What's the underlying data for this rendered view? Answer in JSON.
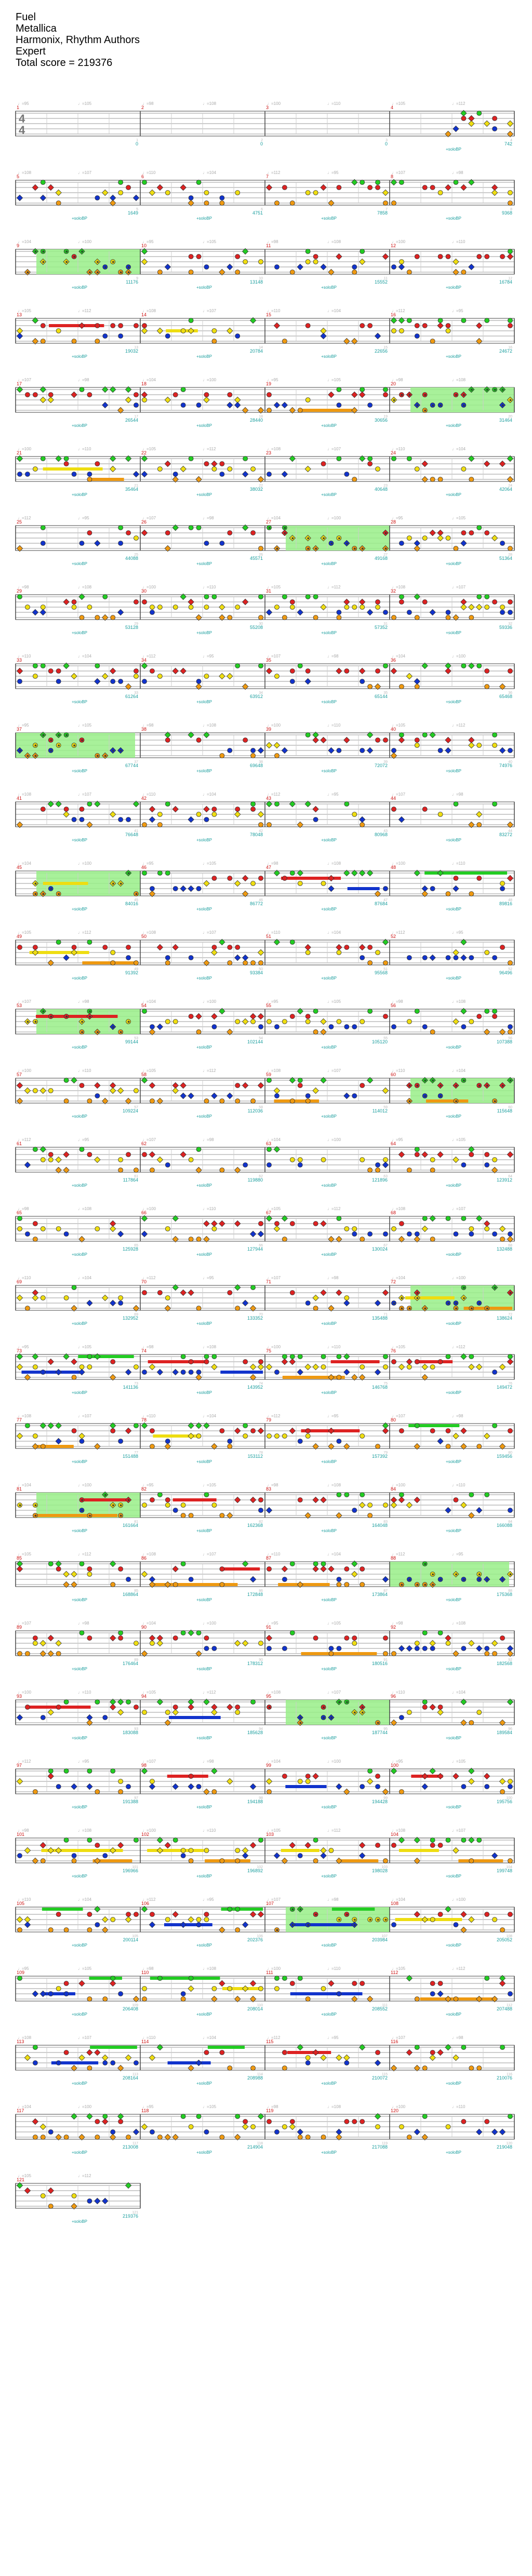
{
  "song": {
    "title": "Fuel",
    "artist": "Metallica",
    "charter": "Harmonix, Rhythm Authors",
    "difficulty": "Expert",
    "total_score_text": "Total score = 219376"
  },
  "time_signature": {
    "top": "4",
    "bottom": "4"
  },
  "tempo_markers": [
    "♩=95",
    "♩=98",
    "♩=100",
    "♩=105",
    "♩=108",
    "♩=110",
    "♩=112",
    "♩=107",
    "♩=104"
  ],
  "multiplier_text": "+solo\\nBP",
  "colors": {
    "green": "#22cc22",
    "red": "#dd2222",
    "yellow": "#eedd11",
    "blue": "#1133cc",
    "orange": "#ee9911",
    "starpower_fill": "#99ee88",
    "score_text": "#1a9e9e",
    "measure_number": "#cc1111",
    "staff_line": "#999999"
  },
  "measures": [
    {
      "n": "1",
      "score": "0"
    },
    {
      "n": "2",
      "score": "0"
    },
    {
      "n": "3",
      "score": "0"
    },
    {
      "n": "4",
      "score": "742"
    },
    {
      "n": "5",
      "score": "1649"
    },
    {
      "n": "6",
      "score": "4751"
    },
    {
      "n": "7",
      "score": "7858"
    },
    {
      "n": "8",
      "score": "9368"
    },
    {
      "n": "9",
      "score": "11176"
    },
    {
      "n": "10",
      "score": "13148"
    },
    {
      "n": "11",
      "score": "15552"
    },
    {
      "n": "12",
      "score": "16784"
    },
    {
      "n": "13",
      "score": "19032"
    },
    {
      "n": "14",
      "score": "20784"
    },
    {
      "n": "15",
      "score": "22656"
    },
    {
      "n": "16",
      "score": "24672"
    },
    {
      "n": "17",
      "score": "26544"
    },
    {
      "n": "18",
      "score": "28440"
    },
    {
      "n": "19",
      "score": "30656"
    },
    {
      "n": "20",
      "score": "31464"
    },
    {
      "n": "21",
      "score": "35464"
    },
    {
      "n": "22",
      "score": "38032"
    },
    {
      "n": "23",
      "score": "40648"
    },
    {
      "n": "24",
      "score": "42064"
    },
    {
      "n": "25",
      "score": "44088"
    },
    {
      "n": "26",
      "score": "45571"
    },
    {
      "n": "27",
      "score": "49168"
    },
    {
      "n": "28",
      "score": "51364"
    },
    {
      "n": "29",
      "score": "53128"
    },
    {
      "n": "30",
      "score": "55208"
    },
    {
      "n": "31",
      "score": "57352"
    },
    {
      "n": "32",
      "score": "59336"
    },
    {
      "n": "33",
      "score": "61264"
    },
    {
      "n": "34",
      "score": "63912"
    },
    {
      "n": "35",
      "score": "65144"
    },
    {
      "n": "36",
      "score": "65468"
    },
    {
      "n": "37",
      "score": "67744"
    },
    {
      "n": "38",
      "score": "69648"
    },
    {
      "n": "39",
      "score": "72072"
    },
    {
      "n": "40",
      "score": "74976"
    },
    {
      "n": "41",
      "score": "76648"
    },
    {
      "n": "42",
      "score": "78048"
    },
    {
      "n": "43",
      "score": "80968"
    },
    {
      "n": "44",
      "score": "83272"
    },
    {
      "n": "45",
      "score": "84016"
    },
    {
      "n": "46",
      "score": "86772"
    },
    {
      "n": "47",
      "score": "87684"
    },
    {
      "n": "48",
      "score": "89816"
    },
    {
      "n": "49",
      "score": "91392"
    },
    {
      "n": "50",
      "score": "93384"
    },
    {
      "n": "51",
      "score": "95568"
    },
    {
      "n": "52",
      "score": "96496"
    },
    {
      "n": "53",
      "score": "99144"
    },
    {
      "n": "54",
      "score": "102144"
    },
    {
      "n": "55",
      "score": "105120"
    },
    {
      "n": "56",
      "score": "107388"
    },
    {
      "n": "57",
      "score": "109224"
    },
    {
      "n": "58",
      "score": "112036"
    },
    {
      "n": "59",
      "score": "114012"
    },
    {
      "n": "60",
      "score": "115648"
    },
    {
      "n": "61",
      "score": "117864"
    },
    {
      "n": "62",
      "score": "119880"
    },
    {
      "n": "63",
      "score": "121896"
    },
    {
      "n": "64",
      "score": "123912"
    },
    {
      "n": "65",
      "score": "125928"
    },
    {
      "n": "66",
      "score": "127944"
    },
    {
      "n": "67",
      "score": "130024"
    },
    {
      "n": "68",
      "score": "132488"
    },
    {
      "n": "69",
      "score": "132952"
    },
    {
      "n": "70",
      "score": "133352"
    },
    {
      "n": "71",
      "score": "135488"
    },
    {
      "n": "72",
      "score": "138624"
    },
    {
      "n": "73",
      "score": "141136"
    },
    {
      "n": "74",
      "score": "143952"
    },
    {
      "n": "75",
      "score": "146768"
    },
    {
      "n": "76",
      "score": "149472"
    },
    {
      "n": "77",
      "score": "151488"
    },
    {
      "n": "78",
      "score": "153112"
    },
    {
      "n": "79",
      "score": "157392"
    },
    {
      "n": "80",
      "score": "159456"
    },
    {
      "n": "81",
      "score": "161664"
    },
    {
      "n": "82",
      "score": "162368"
    },
    {
      "n": "83",
      "score": "164048"
    },
    {
      "n": "84",
      "score": "166088"
    },
    {
      "n": "85",
      "score": "168864"
    },
    {
      "n": "86",
      "score": "172848"
    },
    {
      "n": "87",
      "score": "173864"
    },
    {
      "n": "88",
      "score": "175368"
    },
    {
      "n": "89",
      "score": "176464"
    },
    {
      "n": "90",
      "score": "178312"
    },
    {
      "n": "91",
      "score": "180516"
    },
    {
      "n": "92",
      "score": "182568"
    },
    {
      "n": "93",
      "score": "183088"
    },
    {
      "n": "94",
      "score": "185628"
    },
    {
      "n": "95",
      "score": "187744"
    },
    {
      "n": "96",
      "score": "189584"
    },
    {
      "n": "97",
      "score": "191388"
    },
    {
      "n": "98",
      "score": "194188"
    },
    {
      "n": "99",
      "score": "194428"
    },
    {
      "n": "100",
      "score": "195756"
    },
    {
      "n": "101",
      "score": "196966"
    },
    {
      "n": "102",
      "score": "196892"
    },
    {
      "n": "103",
      "score": "198028"
    },
    {
      "n": "104",
      "score": "199748"
    },
    {
      "n": "105",
      "score": "200114"
    },
    {
      "n": "106",
      "score": "202376"
    },
    {
      "n": "107",
      "score": "203984"
    },
    {
      "n": "108",
      "score": "205052"
    },
    {
      "n": "109",
      "score": "206408"
    },
    {
      "n": "110",
      "score": "208014"
    },
    {
      "n": "111",
      "score": "208552"
    },
    {
      "n": "112",
      "score": "207488"
    },
    {
      "n": "113",
      "score": "208164"
    },
    {
      "n": "114",
      "score": "208988"
    },
    {
      "n": "115",
      "score": "210072"
    },
    {
      "n": "116",
      "score": "210076"
    },
    {
      "n": "117",
      "score": "213008"
    },
    {
      "n": "118",
      "score": "214904"
    },
    {
      "n": "119",
      "score": "217088"
    },
    {
      "n": "120",
      "score": "219048"
    },
    {
      "n": "121",
      "score": "219376"
    }
  ]
}
